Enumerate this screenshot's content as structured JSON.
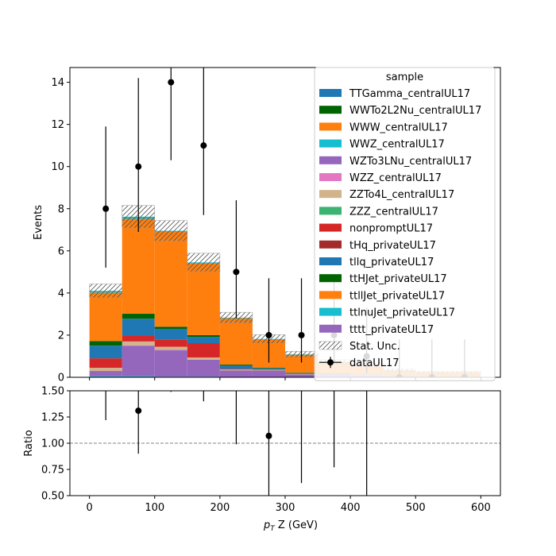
{
  "chart_data": [
    {
      "type": "stacked-histogram",
      "ylabel": "Events",
      "ylim": [
        0,
        14.7
      ],
      "xlim": [
        -30,
        630
      ],
      "y_ticks": [
        "0",
        "2",
        "4",
        "6",
        "8",
        "10",
        "12",
        "14"
      ],
      "bin_edges": [
        0,
        50,
        100,
        150,
        200,
        250,
        300,
        350,
        400,
        450,
        500,
        550,
        600
      ],
      "legend_title": "sample",
      "legend_position": "top-right",
      "series": [
        {
          "name": "TTGamma_centralUL17",
          "color": "#1f77b4",
          "values": [
            0,
            0,
            0,
            0,
            0,
            0,
            0,
            0,
            0,
            0,
            0,
            0
          ]
        },
        {
          "name": "WWTo2L2Nu_centralUL17",
          "color": "#006400",
          "values": [
            0,
            0,
            0,
            0,
            0,
            0,
            0,
            0,
            0,
            0,
            0,
            0
          ]
        },
        {
          "name": "WWW_centralUL17",
          "color": "#ff7f0e",
          "values": [
            0,
            0,
            0,
            0,
            0,
            0,
            0,
            0,
            0,
            0,
            0,
            0
          ]
        },
        {
          "name": "WWZ_centralUL17",
          "color": "#17becf",
          "values": [
            0.05,
            0.05,
            0.03,
            0.03,
            0.02,
            0.02,
            0.01,
            0.01,
            0.01,
            0,
            0,
            0
          ]
        },
        {
          "name": "WZTo3LNu_centralUL17",
          "color": "#9467bd",
          "values": [
            0.25,
            1.45,
            1.25,
            0.8,
            0.3,
            0.3,
            0.12,
            0.1,
            0.08,
            0.05,
            0.03,
            0.03
          ]
        },
        {
          "name": "WZZ_centralUL17",
          "color": "#e377c2",
          "values": [
            0,
            0.02,
            0.02,
            0.01,
            0,
            0,
            0,
            0,
            0,
            0,
            0,
            0
          ]
        },
        {
          "name": "ZZTo4L_centralUL17",
          "color": "#d2b48c",
          "values": [
            0.15,
            0.18,
            0.15,
            0.1,
            0.05,
            0.03,
            0.02,
            0.01,
            0.01,
            0,
            0,
            0
          ]
        },
        {
          "name": "ZZZ_centralUL17",
          "color": "#3cb371",
          "values": [
            0,
            0,
            0,
            0,
            0,
            0,
            0,
            0,
            0,
            0,
            0,
            0
          ]
        },
        {
          "name": "nonpromptUL17",
          "color": "#d62728",
          "values": [
            0.45,
            0.28,
            0.35,
            0.68,
            0.03,
            0.02,
            0.01,
            0.01,
            0.01,
            0,
            0,
            0
          ]
        },
        {
          "name": "tHq_privateUL17",
          "color": "#a52a2a",
          "values": [
            0,
            0,
            0,
            0,
            0,
            0,
            0,
            0,
            0,
            0,
            0,
            0
          ]
        },
        {
          "name": "tllq_privateUL17",
          "color": "#1f77b4",
          "values": [
            0.6,
            0.8,
            0.5,
            0.3,
            0.15,
            0.05,
            0.04,
            0.02,
            0.02,
            0.01,
            0.01,
            0.01
          ]
        },
        {
          "name": "ttHJet_privateUL17",
          "color": "#006400",
          "values": [
            0.22,
            0.24,
            0.1,
            0.08,
            0.05,
            0.03,
            0.02,
            0.02,
            0.01,
            0.01,
            0,
            0
          ]
        },
        {
          "name": "ttllJet_privateUL17",
          "color": "#ff7f0e",
          "values": [
            2.3,
            4.5,
            4.5,
            3.4,
            2.2,
            1.35,
            0.85,
            0.55,
            0.45,
            0.25,
            0.2,
            0.2
          ]
        },
        {
          "name": "ttlnuJet_privateUL17",
          "color": "#17becf",
          "values": [
            0.08,
            0.1,
            0.05,
            0.05,
            0.03,
            0.02,
            0.02,
            0.01,
            0.01,
            0.01,
            0,
            0
          ]
        },
        {
          "name": "tttt_privateUL17",
          "color": "#9467bd",
          "values": [
            0,
            0,
            0,
            0,
            0,
            0,
            0,
            0,
            0,
            0,
            0,
            0
          ]
        }
      ],
      "stat_unc": {
        "name": "Stat. Unc.",
        "fraction": [
          0.08,
          0.07,
          0.07,
          0.08,
          0.09,
          0.11,
          0.13,
          0.15,
          0.15,
          0.2,
          0.2,
          0.2
        ]
      },
      "data": {
        "name": "dataUL17",
        "x": [
          25,
          75,
          125,
          175,
          225,
          275,
          325,
          375,
          425,
          475,
          525,
          575
        ],
        "y": [
          8,
          10,
          14,
          11,
          5,
          2,
          2,
          2,
          1,
          0,
          0,
          0
        ],
        "err_low": [
          2.8,
          3.1,
          3.7,
          3.3,
          2.2,
          1.3,
          1.3,
          1.3,
          0.8,
          0,
          0,
          0
        ],
        "err_high": [
          3.9,
          4.2,
          4.8,
          4.4,
          3.4,
          2.7,
          2.7,
          2.7,
          2.3,
          1.8,
          1.8,
          1.8
        ]
      }
    },
    {
      "type": "ratio",
      "xlabel": "pT Z (GeV)",
      "ylabel": "Ratio",
      "ylim": [
        0.5,
        1.5
      ],
      "y_ticks": [
        "0.50",
        "0.75",
        "1.00",
        "1.25",
        "1.50"
      ],
      "x_ticks": [
        "0",
        "100",
        "200",
        "300",
        "400",
        "500",
        "600"
      ],
      "reference_line": 1.0,
      "x": [
        25,
        75,
        125,
        175,
        225,
        275,
        325,
        375,
        425
      ],
      "ratio": [
        1.88,
        1.31,
        2.02,
        2.0,
        1.63,
        1.07,
        1.82,
        2.6,
        1.8
      ],
      "err_low": [
        0.66,
        0.41,
        0.53,
        0.6,
        0.64,
        0.7,
        1.2,
        1.83,
        1.5
      ],
      "err_high": [
        0.9,
        0.55,
        0.7,
        0.8,
        1.1,
        1.44,
        2.4,
        3.6,
        4.2
      ]
    }
  ]
}
